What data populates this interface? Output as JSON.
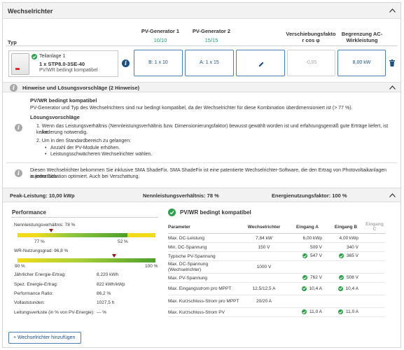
{
  "panel": {
    "title": "Wechselrichter"
  },
  "columns": {
    "typ": "Typ",
    "pv1": "PV-Generator 1",
    "pv1_count": "10/10",
    "pv2": "PV-Generator 2",
    "pv2_count": "15/15",
    "cos_line1": "Verschiebungsfakto",
    "cos_line2": "r cos φ",
    "ac_line1": "Begrenzung AC-",
    "ac_line2": "Wirkleistung"
  },
  "inverter": {
    "subtitle": "Teilanlage 1",
    "model": "1 x STP8.0-3SE-40",
    "status": "PV/WR bedingt kompatibel",
    "pv1_value": "B: 1 x 10",
    "pv2_value": "A: 1 x 15",
    "cos_value": "-0,95",
    "ac_value": "8,00 kW"
  },
  "hints": {
    "header": "Hinweise und Lösungsvorschläge (2 Hinweise)",
    "h1_title": "PV/WR bedingt kompatibel",
    "h1_text": "PV-Generator und Typ des Wechselrichters sind nur bedingt kompatibel, da der Wechselrichter für diese Kombination überdimensioniert ist (> 77 %).",
    "solutions_title": "Lösungsvorschläge",
    "s1_line1": "1. Wenn das Leistungsverhältnis (Nennleistungsverhältnis bzw. Dimensionierungsfaktor) bewusst gewählt worden ist und erfahrungsgemäß gute Erträge liefert, ist keine",
    "s1_line2": "Änderung notwendig.",
    "s2": "2. Um in den Standardbereich zu gelangen:",
    "bullet1": "Anzahl der PV-Module erhöhen.",
    "bullet2": "Leistungsschwächeren Wechselrichter wählen.",
    "h2_line1": "Diesen Wechselrichter bekommen Sie inklusive SMA ShadeFix. SMA ShadeFix ist eine patentierte Wechselrichter-Software, die den Ertrag von Photovoltaikanlagen automatisch",
    "h2_line2": "in jeder Situation optimiert. Auch bei Verschattung."
  },
  "stats": {
    "peak": "Peak-Leistung: 10,00 kWp",
    "ratio": "Nennleistungsverhältnis: 78 %",
    "energy": "Energienutzungsfaktor: 100 %"
  },
  "performance": {
    "title": "Performance",
    "g1_label": "Nennleistungsverhältnis: 78 %",
    "g1_value": 78,
    "g1_left": "77 %",
    "g1_right": "52 %",
    "g2_label": "WR-Nutzungsgrad: 96,8 %",
    "g2_value": 96.8,
    "g2_left": "90 %",
    "g2_right": "100 %",
    "rows": [
      {
        "label": "Jährlicher Energie-Ertrag:",
        "value": "8.220 kWh"
      },
      {
        "label": "Spez. Energie-Ertrag:",
        "value": "822 kWh/kWp"
      },
      {
        "label": "Performance Ratio:",
        "value": "86,2 %"
      },
      {
        "label": "Vollaststunden:",
        "value": "1027,5 h"
      },
      {
        "label": "Leitungsverluste (in % von PV-Energie):",
        "value": "--- %"
      }
    ]
  },
  "compat": {
    "title": "PV/WR bedingt kompatibel",
    "headers": [
      "Parameter",
      "Wechselrichter",
      "Eingang A",
      "Eingang B",
      "Eingang C"
    ],
    "rows": [
      {
        "p": "Max. DC-Leistung",
        "w": "7,84 kW",
        "a": "6,00 kWp",
        "b": "4,00 kWp",
        "ca": false,
        "cb": false
      },
      {
        "p": "Min. DC-Spannung",
        "w": "150 V",
        "a": "509 V",
        "b": "340 V",
        "ca": false,
        "cb": false
      },
      {
        "p": "Typische PV-Spannung",
        "w": "",
        "a": "547 V",
        "b": "365 V",
        "ca": true,
        "cb": true
      },
      {
        "p": "Max. DC-Spannung (Wechselrichter)",
        "w": "1000 V",
        "a": "",
        "b": "",
        "ca": false,
        "cb": false
      },
      {
        "p": "Max. PV-Spannung",
        "w": "",
        "a": "762 V",
        "b": "508 V",
        "ca": true,
        "cb": true
      },
      {
        "p": "Max. Eingangsstrom pro MPPT",
        "w": "12,5/12,5 A",
        "a": "10,4 A",
        "b": "10,4 A",
        "ca": true,
        "cb": true
      },
      {
        "p": "Max. Kurzschluss-Strom pro MPPT",
        "w": "20/20 A",
        "a": "",
        "b": "",
        "ca": false,
        "cb": false
      },
      {
        "p": "Max. Kurzschluss-Strom PV",
        "w": "",
        "a": "11,0 A",
        "b": "11,0 A",
        "ca": true,
        "cb": true
      }
    ]
  },
  "add_button": "+ Wechselrichter hinzufügen"
}
